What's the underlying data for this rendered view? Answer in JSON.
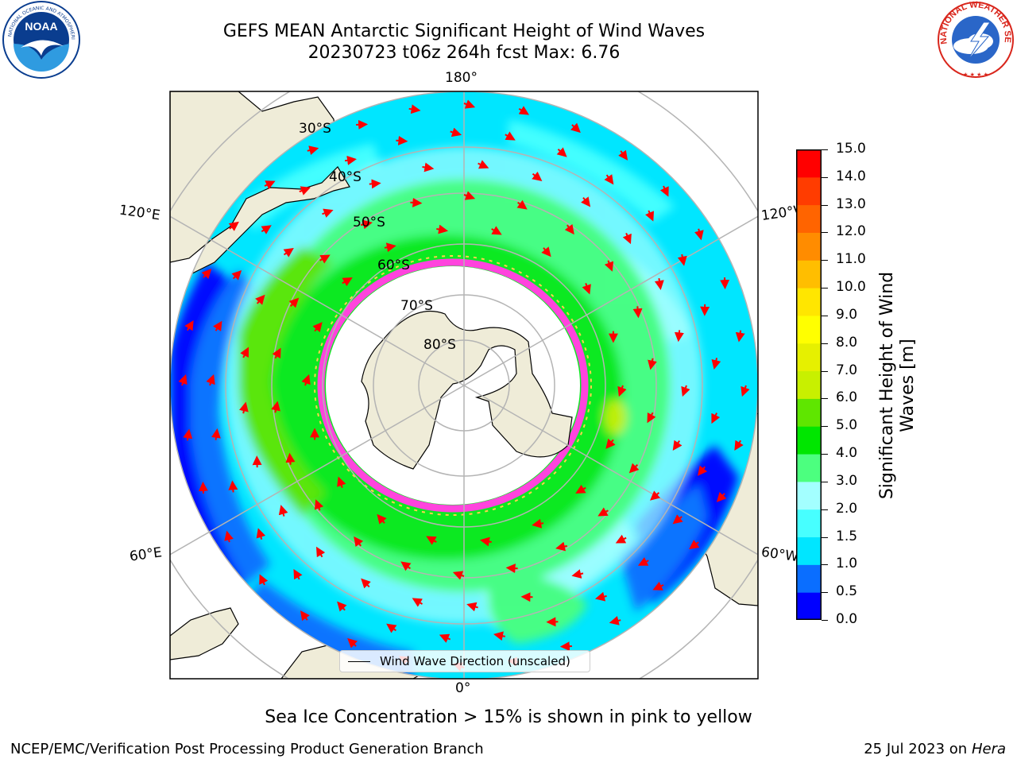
{
  "header": {
    "title_line1": "GEFS MEAN Antarctic Significant Height of Wind Waves",
    "title_line2": "20230723 t06z 264h fcst   Max: 6.76"
  },
  "colorbar": {
    "label": "Significant Height of Wind Waves [m]",
    "ticks": [
      "0.0",
      "0.5",
      "1.0",
      "1.5",
      "2.0",
      "3.0",
      "4.0",
      "5.0",
      "6.0",
      "7.0",
      "8.0",
      "9.0",
      "10.0",
      "11.0",
      "12.0",
      "13.0",
      "14.0",
      "15.0"
    ],
    "colors": [
      "#0000ff",
      "#0a6eff",
      "#00e6ff",
      "#47ffff",
      "#a3ffff",
      "#4cff7f",
      "#00e600",
      "#5fe600",
      "#c8f000",
      "#e6f000",
      "#ffff00",
      "#ffe600",
      "#ffbe00",
      "#ff8c00",
      "#ff6400",
      "#ff3c00",
      "#ff0000"
    ]
  },
  "map": {
    "longitude_labels": {
      "top": "180°",
      "bottom": "0°",
      "upper_left": "120°E",
      "lower_left": "60°E",
      "upper_right": "120°W",
      "lower_right": "60°W"
    },
    "latitude_labels": [
      "30°S",
      "40°S",
      "50°S",
      "60°S",
      "70°S",
      "80°S"
    ],
    "colors": {
      "land": "#efecd8",
      "ice_edge": "#ff44dd",
      "arrow": "#ff0000",
      "graticule": "#b4b4b4"
    }
  },
  "legend": {
    "label": "Wind Wave Direction (unscaled)"
  },
  "note": "Sea Ice Concentration > 15% is shown in pink to yellow",
  "footer": {
    "left": "NCEP/EMC/Verification Post Processing Product Generation Branch",
    "date": "25 Jul 2023 on",
    "machine": "Hera"
  },
  "logos": {
    "noaa_text": "NOAA",
    "nws_text": "NATIONAL WEATHER SERVICE"
  }
}
